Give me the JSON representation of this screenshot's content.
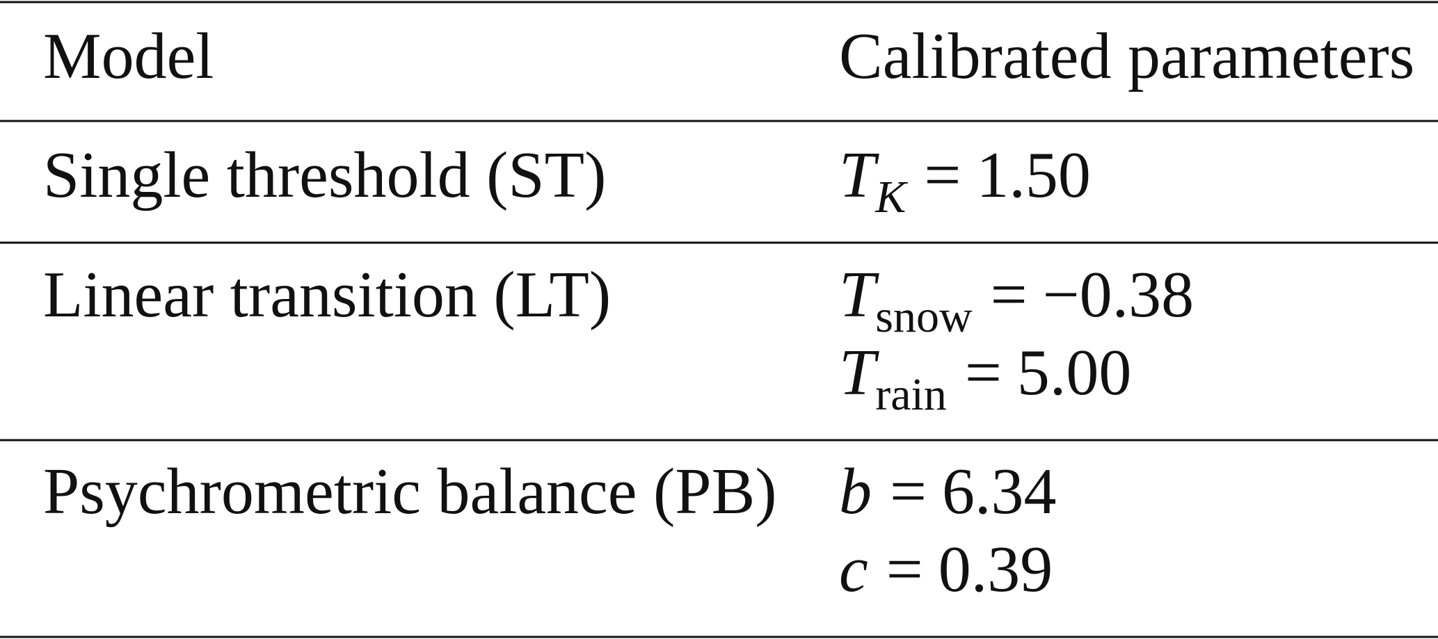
{
  "table": {
    "header": [
      "Model",
      "Calibrated parameters"
    ],
    "rows": [
      {
        "model": "Single threshold (ST)",
        "parameters": [
          {
            "symbol": "T",
            "subscript": "K",
            "italic_subscript": true,
            "relation": "=",
            "value": "1.50"
          }
        ]
      },
      {
        "model": "Linear transition (LT)",
        "parameters": [
          {
            "symbol": "T",
            "subscript": "snow",
            "relation": "=",
            "value": "−0.38"
          },
          {
            "symbol": "T",
            "subscript": "rain",
            "relation": "=",
            "value": "5.00"
          }
        ]
      },
      {
        "model": "Psychrometric balance (PB)",
        "parameters": [
          {
            "symbol": "b",
            "relation": "=",
            "value": "6.34"
          },
          {
            "symbol": "c",
            "relation": "=",
            "value": "0.39"
          }
        ]
      }
    ]
  }
}
